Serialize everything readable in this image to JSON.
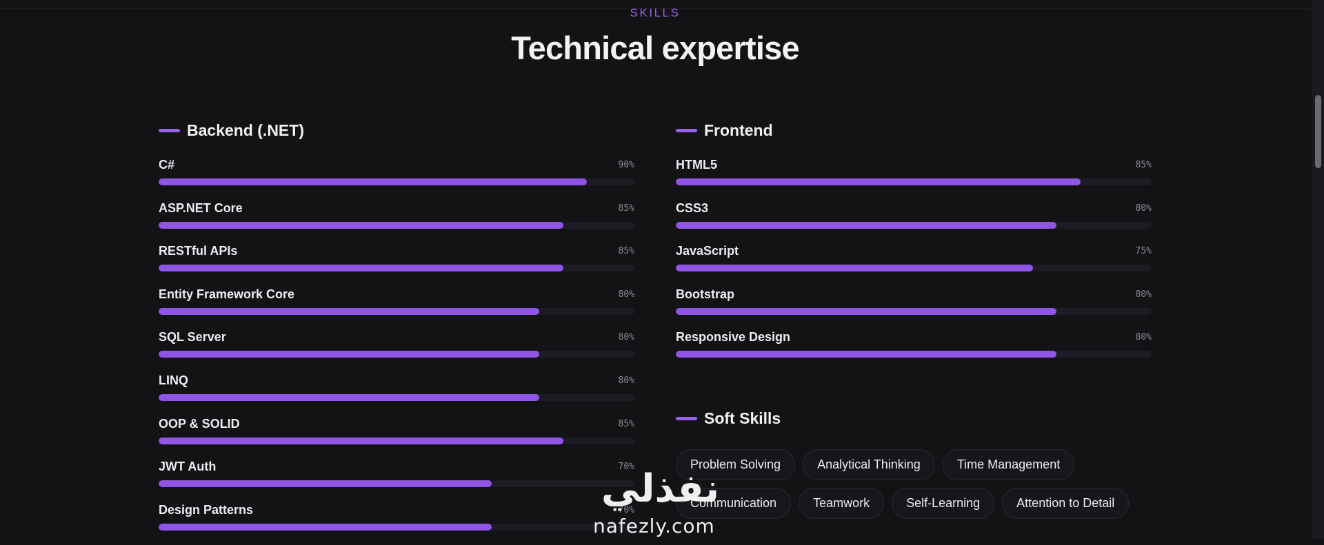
{
  "section": {
    "eyebrow": "SKILLS",
    "title": "Technical expertise"
  },
  "backend": {
    "title": "Backend (.NET)",
    "skills": [
      {
        "name": "C#",
        "percent_label": "90%",
        "level": 90
      },
      {
        "name": "ASP.NET Core",
        "percent_label": "85%",
        "level": 85
      },
      {
        "name": "RESTful APIs",
        "percent_label": "85%",
        "level": 85
      },
      {
        "name": "Entity Framework Core",
        "percent_label": "80%",
        "level": 80
      },
      {
        "name": "SQL Server",
        "percent_label": "80%",
        "level": 80
      },
      {
        "name": "LINQ",
        "percent_label": "80%",
        "level": 80
      },
      {
        "name": "OOP & SOLID",
        "percent_label": "85%",
        "level": 85
      },
      {
        "name": "JWT Auth",
        "percent_label": "70%",
        "level": 70
      },
      {
        "name": "Design Patterns",
        "percent_label": "70%",
        "level": 70
      }
    ]
  },
  "frontend": {
    "title": "Frontend",
    "skills": [
      {
        "name": "HTML5",
        "percent_label": "85%",
        "level": 85
      },
      {
        "name": "CSS3",
        "percent_label": "80%",
        "level": 80
      },
      {
        "name": "JavaScript",
        "percent_label": "75%",
        "level": 75
      },
      {
        "name": "Bootstrap",
        "percent_label": "80%",
        "level": 80
      },
      {
        "name": "Responsive Design",
        "percent_label": "80%",
        "level": 80
      }
    ]
  },
  "soft_skills": {
    "title": "Soft Skills",
    "items": [
      "Problem Solving",
      "Analytical Thinking",
      "Time Management",
      "Communication",
      "Teamwork",
      "Self-Learning",
      "Attention to Detail"
    ]
  },
  "watermark": {
    "arabic": "نفذلي",
    "latin": "nafezly.com"
  },
  "colors": {
    "background": "#131215",
    "accent": "#9a63ec",
    "bar_fill": "#8f55e5",
    "bar_track": "#1d1b24",
    "text": "#ececf1",
    "muted": "#8b8a93"
  }
}
